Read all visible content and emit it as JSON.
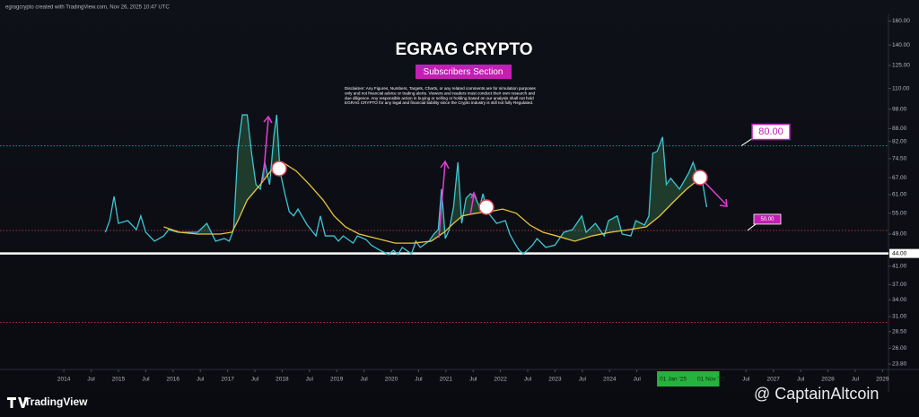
{
  "header": "egragcrypto created with TradingView.com, Nov 26, 2025 10:47 UTC",
  "brand": "TradingView",
  "watermark": "@ CaptainAltcoin",
  "chart_data": {
    "type": "line",
    "title": "EGRAG CRYPTO",
    "subtitle": "Subscribers Section",
    "disclaimer": [
      "Disclaimer: Any Figures, Numbers, Targets, Charts, or any related comments are for simulation purposes",
      "only and not financial advice or trading alerts. Viewers and readers must conduct their own research and",
      "due diligence. Any responsible action in buying or selling or holding based on our analysis shall not hold",
      "EGRAG CRYPTO for any legal and financial liability since the Crypto industry is still not fully Regulated."
    ],
    "log_scale": true,
    "grid": false,
    "xlim": [
      2012.83,
      2029.11
    ],
    "ylim": [
      23.1,
      166
    ],
    "xticks": [
      2014,
      {
        "value": 2014.5,
        "label": "Jul"
      },
      2015,
      {
        "value": 2015.5,
        "label": "Jul"
      },
      2016,
      {
        "value": 2016.5,
        "label": "Jul"
      },
      2017,
      {
        "value": 2017.5,
        "label": "Jul"
      },
      2018,
      {
        "value": 2018.5,
        "label": "Jul"
      },
      2019,
      {
        "value": 2019.5,
        "label": "Jul"
      },
      2020,
      {
        "value": 2020.5,
        "label": "Jul"
      },
      2021,
      {
        "value": 2021.5,
        "label": "Jul"
      },
      2022,
      {
        "value": 2022.5,
        "label": "Jul"
      },
      2023,
      {
        "value": 2023.5,
        "label": "Jul"
      },
      2024,
      {
        "value": 2024.5,
        "label": "Jul"
      },
      {
        "value": 2026.5,
        "label": "Jul"
      },
      2027,
      {
        "value": 2027.5,
        "label": "Jul"
      },
      2028,
      {
        "value": 2028.5,
        "label": "Jul"
      },
      2029
    ],
    "yticks": [
      {
        "value": 160,
        "label": "160.00"
      },
      {
        "value": 140,
        "label": "140.00"
      },
      {
        "value": 125,
        "label": "125.00"
      },
      {
        "value": 110,
        "label": "110.00"
      },
      {
        "value": 98,
        "label": "98.00"
      },
      {
        "value": 88,
        "label": "88.00"
      },
      {
        "value": 82,
        "label": "82.00"
      },
      {
        "value": 74.5,
        "label": "74.50"
      },
      {
        "value": 67,
        "label": "67.00"
      },
      {
        "value": 61,
        "label": "61.00"
      },
      {
        "value": 55,
        "label": "55.00"
      },
      {
        "value": 49,
        "label": "49.00"
      },
      {
        "value": 41,
        "label": "41.00"
      },
      {
        "value": 37,
        "label": "37.00"
      },
      {
        "value": 34,
        "label": "34.00"
      },
      {
        "value": 31,
        "label": "31.00"
      },
      {
        "value": 28.5,
        "label": "28.50"
      },
      {
        "value": 26,
        "label": "26.00"
      },
      {
        "value": 23.8,
        "label": "23.80"
      }
    ],
    "series": [
      {
        "color": "#3ec6d4",
        "x": [
          2014.76,
          2014.84,
          2014.92,
          2015.0,
          2015.17,
          2015.33,
          2015.41,
          2015.5,
          2015.66,
          2015.83,
          2015.92,
          2016.09,
          2016.29,
          2016.45,
          2016.62,
          2016.78,
          2016.94,
          2017.03,
          2017.11,
          2017.19,
          2017.27,
          2017.36,
          2017.44,
          2017.52,
          2017.6,
          2017.68,
          2017.77,
          2017.85,
          2017.9,
          2017.96,
          2018.05,
          2018.13,
          2018.21,
          2018.29,
          2018.46,
          2018.62,
          2018.7,
          2018.79,
          2018.95,
          2019.03,
          2019.12,
          2019.3,
          2019.38,
          2019.54,
          2019.63,
          2019.79,
          2019.95,
          2020.04,
          2020.12,
          2020.2,
          2020.37,
          2020.45,
          2020.53,
          2020.69,
          2020.78,
          2020.86,
          2020.92,
          2020.99,
          2021.06,
          2021.14,
          2021.22,
          2021.29,
          2021.37,
          2021.45,
          2021.53,
          2021.62,
          2021.68,
          2021.76,
          2021.93,
          2022.09,
          2022.17,
          2022.26,
          2022.34,
          2022.42,
          2022.59,
          2022.67,
          2022.83,
          2023.0,
          2023.16,
          2023.32,
          2023.49,
          2023.57,
          2023.74,
          2023.9,
          2023.98,
          2024.14,
          2024.23,
          2024.39,
          2024.48,
          2024.64,
          2024.72,
          2024.79,
          2024.87,
          2024.97,
          2025.04,
          2025.12,
          2025.28,
          2025.45,
          2025.53,
          2025.61,
          2025.69,
          2025.78
        ],
        "values": [
          49.5,
          52.8,
          60.4,
          52,
          52.8,
          50.2,
          54.2,
          49.5,
          47.1,
          48.5,
          50.2,
          49.5,
          49.5,
          49.5,
          52,
          47.1,
          47.8,
          47.1,
          50.2,
          78.7,
          95,
          95,
          76.7,
          64.5,
          62.9,
          73,
          64.5,
          84.8,
          95,
          69.5,
          61.3,
          55.5,
          54.2,
          56.3,
          51.5,
          48.5,
          54.2,
          48.5,
          48.5,
          47.1,
          48.5,
          46.6,
          48.5,
          47.5,
          46.1,
          44.8,
          43.7,
          44.8,
          43.7,
          45.5,
          43.9,
          47.1,
          45.5,
          47.1,
          49,
          50.2,
          62.9,
          47.8,
          50.2,
          56.9,
          73,
          52,
          59.8,
          61.3,
          60.4,
          56.9,
          61.3,
          55.5,
          52,
          52.8,
          49,
          46.6,
          44.8,
          43.9,
          46.1,
          47.8,
          45.5,
          46.1,
          49.5,
          50.2,
          54.2,
          49.5,
          52,
          48.5,
          52.8,
          54.2,
          49,
          48.5,
          52.8,
          51.5,
          54.2,
          76.7,
          77.5,
          84,
          64.5,
          66.8,
          62.9,
          68.8,
          73,
          67.8,
          66.8,
          56.9
        ]
      },
      {
        "color": "#e8c53a",
        "x": [
          2015.83,
          2016.12,
          2016.45,
          2016.86,
          2017.08,
          2017.19,
          2017.36,
          2017.6,
          2017.85,
          2018.01,
          2018.26,
          2018.5,
          2018.75,
          2018.95,
          2019.16,
          2019.41,
          2019.74,
          2020.07,
          2020.4,
          2020.73,
          2020.97,
          2021.14,
          2021.3,
          2021.55,
          2021.8,
          2022.04,
          2022.29,
          2022.54,
          2022.78,
          2023.03,
          2023.36,
          2023.68,
          2024.02,
          2024.35,
          2024.67,
          2024.92,
          2025.16,
          2025.41,
          2025.66,
          2025.79
        ],
        "values": [
          51,
          49.5,
          49,
          49,
          49.5,
          52.8,
          59.2,
          64.5,
          71.2,
          73,
          69.5,
          64.5,
          59.2,
          54.2,
          51,
          49,
          47.8,
          46.6,
          46.6,
          47.1,
          49.5,
          52,
          54.2,
          55,
          55.5,
          56.3,
          55,
          51.5,
          49.5,
          48.5,
          47.1,
          48.5,
          49.5,
          50.2,
          51,
          54.2,
          58.4,
          62.9,
          66.8,
          66.8
        ]
      }
    ],
    "hlines": [
      {
        "value": 80,
        "color": "#2f8f8a",
        "style": "dotted"
      },
      {
        "value": 50,
        "color": "#b0303a",
        "style": "dotted"
      },
      {
        "value": 44,
        "color": "#ffffff",
        "style": "solid",
        "label": "44.00"
      },
      {
        "value": 30,
        "color": "#b0303a",
        "style": "dotted"
      }
    ],
    "annotations": [
      {
        "text": "80.00",
        "value": 80
      },
      {
        "text": "50.00",
        "value": 50
      }
    ],
    "date_range": {
      "start": {
        "value": 2025.0,
        "label": "01 Jan '25"
      },
      "end": {
        "value": 2025.83,
        "label": "01 Nov '25"
      }
    }
  }
}
